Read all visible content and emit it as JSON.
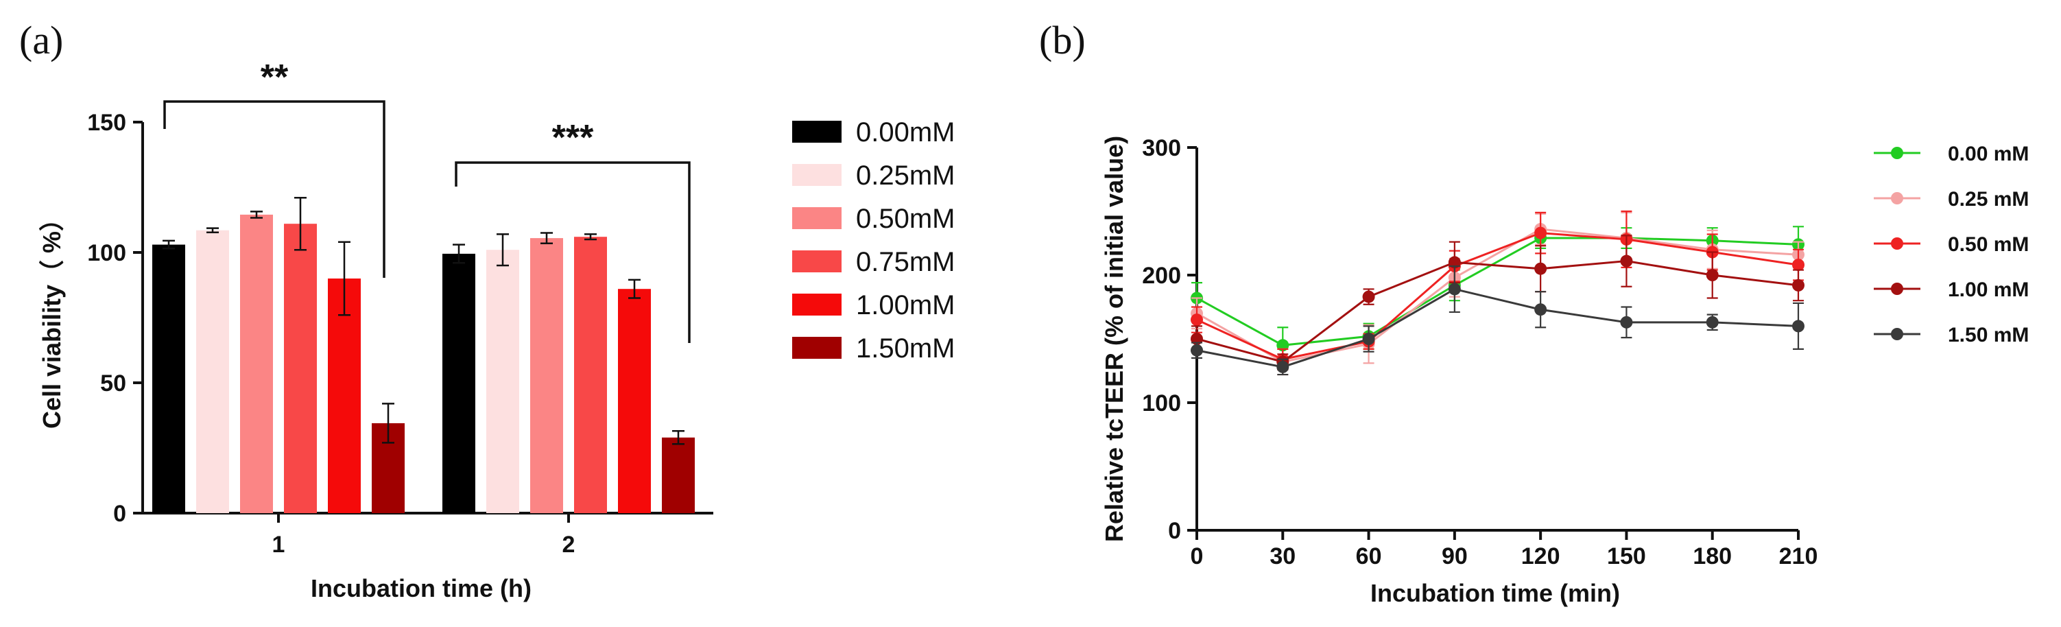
{
  "chart_data": [
    {
      "panel": "(a)",
      "type": "bar",
      "xlabel": "Incubation time (h)",
      "ylabel": "Cell viability（ %）",
      "ylim": [
        0,
        150
      ],
      "yticks": [
        "0",
        "50",
        "100",
        "150"
      ],
      "categories": [
        "1",
        "2"
      ],
      "series": [
        {
          "name": "0.00mM",
          "color": "#000000",
          "values": [
            103,
            99.5
          ],
          "errors": [
            1.5,
            3.5
          ]
        },
        {
          "name": "0.25mM",
          "color": "#fde0e0",
          "values": [
            108.5,
            101
          ],
          "errors": [
            0.8,
            6
          ]
        },
        {
          "name": "0.50mM",
          "color": "#fb8585",
          "values": [
            114.5,
            105.5
          ],
          "errors": [
            1.2,
            2
          ]
        },
        {
          "name": "0.75mM",
          "color": "#f84848",
          "values": [
            111,
            106
          ],
          "errors": [
            10,
            1
          ]
        },
        {
          "name": "1.00mM",
          "color": "#f50a0a",
          "values": [
            90,
            86
          ],
          "errors": [
            14,
            3.5
          ]
        },
        {
          "name": "1.50mM",
          "color": "#a00000",
          "values": [
            34.5,
            29
          ],
          "errors": [
            7.5,
            2.5
          ]
        }
      ],
      "significance": [
        {
          "group": "1",
          "label": "**"
        },
        {
          "group": "2",
          "label": "***"
        }
      ]
    },
    {
      "panel": "(b)",
      "type": "line",
      "xlabel": "Incubation time (min)",
      "ylabel": "Relative tcTEER (% of initial value)",
      "ylim": [
        0,
        300
      ],
      "yticks": [
        "0",
        "100",
        "200",
        "300"
      ],
      "x": [
        0,
        30,
        60,
        90,
        120,
        150,
        180,
        210
      ],
      "xticks": [
        "0",
        "30",
        "60",
        "90",
        "120",
        "150",
        "180",
        "210"
      ],
      "series": [
        {
          "name": "0.00 mM",
          "color": "#22cc22",
          "values": [
            182,
            145,
            152,
            192,
            229,
            229,
            227,
            224
          ],
          "errors": [
            12,
            14,
            10,
            12,
            8,
            8,
            10,
            14
          ]
        },
        {
          "name": "0.25 mM",
          "color": "#f4a3a3",
          "values": [
            170,
            132,
            146,
            198,
            236,
            229,
            220,
            216
          ],
          "errors": [
            12,
            10,
            15,
            15,
            12,
            20,
            15,
            10
          ]
        },
        {
          "name": "0.50 mM",
          "color": "#ee2222",
          "values": [
            165,
            134,
            148,
            207,
            233,
            228,
            218,
            208
          ],
          "errors": [
            10,
            8,
            6,
            12,
            16,
            22,
            14,
            12
          ]
        },
        {
          "name": "1.00 mM",
          "color": "#a31010",
          "values": [
            150,
            132,
            183,
            210,
            205,
            211,
            200,
            192
          ],
          "errors": [
            10,
            6,
            6,
            16,
            18,
            20,
            18,
            12
          ]
        },
        {
          "name": "1.50 mM",
          "color": "#3a3a3a",
          "values": [
            141,
            128,
            150,
            189,
            173,
            163,
            163,
            160
          ],
          "errors": [
            6,
            6,
            10,
            18,
            14,
            12,
            6,
            18
          ]
        }
      ]
    }
  ]
}
